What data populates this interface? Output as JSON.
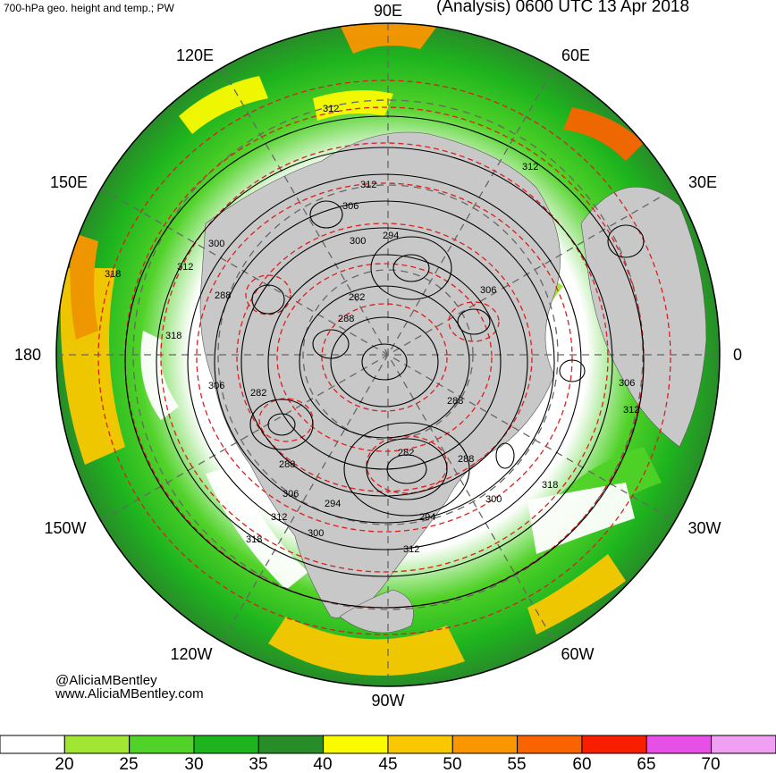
{
  "header": {
    "title_left": "700-hPa geo. height and temp.; PW",
    "title_right": "(Analysis) 0600 UTC 13 Apr 2018"
  },
  "credits": {
    "handle": "@AliciaMBentley",
    "website": "www.AliciaMBentley.com"
  },
  "longitude_labels": {
    "l90e": "90E",
    "l60e": "60E",
    "l30e": "30E",
    "l0": "0",
    "l30w": "30W",
    "l60w": "60W",
    "l90w": "90W",
    "l120w": "120W",
    "l150w": "150W",
    "l180": "180",
    "l150e": "150E",
    "l120e": "120E"
  },
  "contour_values": [
    "312",
    "312",
    "312",
    "306",
    "300",
    "294",
    "282",
    "288",
    "306",
    "300",
    "312",
    "318",
    "318",
    "288",
    "306",
    "282",
    "288",
    "306",
    "312",
    "288",
    "282",
    "288",
    "300",
    "318",
    "294",
    "306",
    "312",
    "300",
    "318",
    "294",
    "312"
  ],
  "colorbar": {
    "colors": [
      "#ffffff",
      "#a0e632",
      "#50d228",
      "#1eb41e",
      "#288c28",
      "#fafa00",
      "#fac800",
      "#fa9600",
      "#fa6400",
      "#fa1e00",
      "#e650e6",
      "#f0a0f0"
    ],
    "ticks": [
      "20",
      "25",
      "30",
      "35",
      "40",
      "45",
      "50",
      "55",
      "60",
      "65",
      "70"
    ]
  },
  "theme": {
    "land": "#c8c8c8",
    "height_contour": "#000000",
    "temp_contour": "#dc1e1e"
  }
}
